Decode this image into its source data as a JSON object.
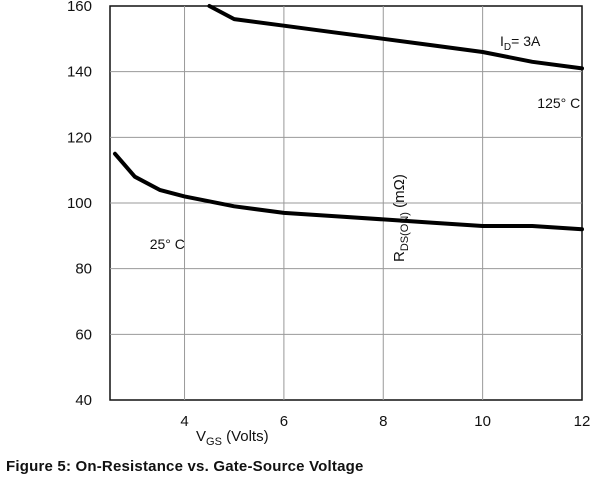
{
  "chart_data": {
    "type": "line",
    "caption": "Figure 5: On-Resistance vs. Gate-Source Voltage",
    "xlabel_main": "V",
    "xlabel_sub": "GS",
    "xlabel_unit": " (Volts)",
    "ylabel_main": "R",
    "ylabel_sub": "DS(ON)",
    "ylabel_unit": " (mΩ)",
    "xlim": [
      2.5,
      12
    ],
    "ylim": [
      40,
      160
    ],
    "x_ticks": [
      4,
      6,
      8,
      10,
      12
    ],
    "y_ticks": [
      40,
      60,
      80,
      100,
      120,
      140,
      160
    ],
    "grid": true,
    "annotation": "I",
    "annotation_sub": "D",
    "annotation_value": "= 3A",
    "series": [
      {
        "name": "125° C",
        "x": [
          4.5,
          5,
          6,
          7,
          8,
          9,
          10,
          11,
          12
        ],
        "y": [
          160,
          156,
          154,
          152,
          150,
          148,
          146,
          143,
          141
        ]
      },
      {
        "name": "25° C",
        "x": [
          2.6,
          3,
          3.5,
          4,
          5,
          6,
          7,
          8,
          9,
          10,
          11,
          12
        ],
        "y": [
          115,
          108,
          104,
          102,
          99,
          97,
          96,
          95,
          94,
          93,
          93,
          92
        ]
      }
    ]
  }
}
